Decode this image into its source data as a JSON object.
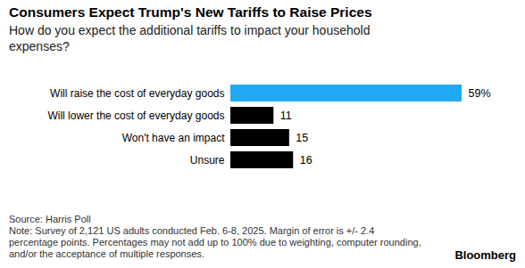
{
  "chart_data": {
    "type": "bar",
    "title": "Consumers Expect Trump's New Tariffs to Raise Prices",
    "subtitle": "How do you expect the additional tariffs to impact your household expenses?",
    "categories": [
      "Will raise the cost of everyday goods",
      "Will lower the cost of everyday goods",
      "Won't have an impact",
      "Unsure"
    ],
    "values": [
      59,
      11,
      15,
      16
    ],
    "value_labels": [
      "59%",
      "11",
      "15",
      "16"
    ],
    "colors": [
      "#21a9f5",
      "#000000",
      "#000000",
      "#000000"
    ],
    "orientation": "horizontal",
    "data_labels": true,
    "tick_labels": "y",
    "grid": false,
    "xlim": [
      0,
      59
    ],
    "source": "Source: Harris Poll",
    "note": "Note: Survey of 2,121 US adults conducted Feb. 6-8, 2025. Margin of error is +/- 2.4 percentage points. Percentages may not add up to 100% due to weighting, computer rounding, and/or the acceptance of multiple responses.",
    "credit": "Bloomberg"
  }
}
